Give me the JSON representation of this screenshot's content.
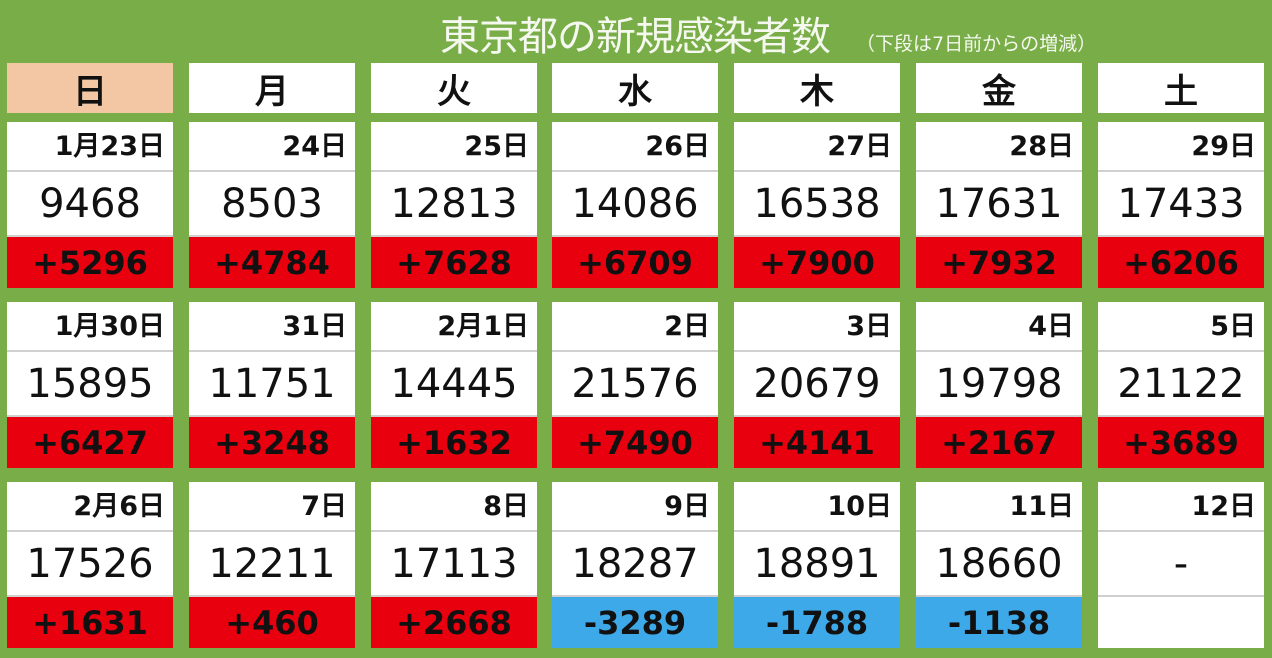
{
  "title": "東京都の新規感染者数",
  "subtitle": "（下段は7日前からの増減）",
  "colors": {
    "background": "#79ad48",
    "increase": "#e8000f",
    "decrease": "#3ea9e8",
    "sunday_header": "#f4c7a4"
  },
  "weekdays": [
    "日",
    "月",
    "火",
    "水",
    "木",
    "金",
    "土"
  ],
  "weeks": [
    [
      {
        "date": "1月23日",
        "cases": "9468",
        "delta": "+5296"
      },
      {
        "date": "24日",
        "cases": "8503",
        "delta": "+4784"
      },
      {
        "date": "25日",
        "cases": "12813",
        "delta": "+7628"
      },
      {
        "date": "26日",
        "cases": "14086",
        "delta": "+6709"
      },
      {
        "date": "27日",
        "cases": "16538",
        "delta": "+7900"
      },
      {
        "date": "28日",
        "cases": "17631",
        "delta": "+7932"
      },
      {
        "date": "29日",
        "cases": "17433",
        "delta": "+6206"
      }
    ],
    [
      {
        "date": "1月30日",
        "cases": "15895",
        "delta": "+6427"
      },
      {
        "date": "31日",
        "cases": "11751",
        "delta": "+3248"
      },
      {
        "date": "2月1日",
        "cases": "14445",
        "delta": "+1632"
      },
      {
        "date": "2日",
        "cases": "21576",
        "delta": "+7490"
      },
      {
        "date": "3日",
        "cases": "20679",
        "delta": "+4141"
      },
      {
        "date": "4日",
        "cases": "19798",
        "delta": "+2167"
      },
      {
        "date": "5日",
        "cases": "21122",
        "delta": "+3689"
      }
    ],
    [
      {
        "date": "2月6日",
        "cases": "17526",
        "delta": "+1631"
      },
      {
        "date": "7日",
        "cases": "12211",
        "delta": "+460"
      },
      {
        "date": "8日",
        "cases": "17113",
        "delta": "+2668"
      },
      {
        "date": "9日",
        "cases": "18287",
        "delta": "-3289"
      },
      {
        "date": "10日",
        "cases": "18891",
        "delta": "-1788"
      },
      {
        "date": "11日",
        "cases": "18660",
        "delta": "-1138"
      },
      {
        "date": "12日",
        "cases": "-",
        "delta": ""
      }
    ]
  ]
}
